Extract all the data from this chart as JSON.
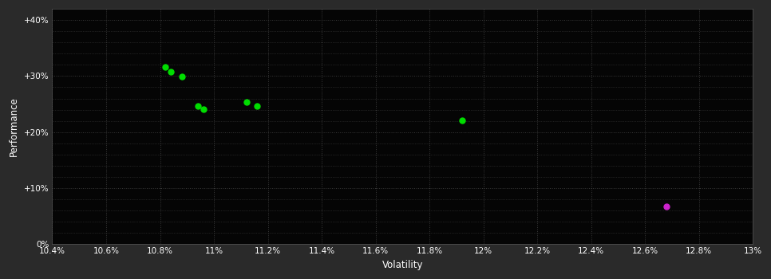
{
  "background_color": "#2a2a2a",
  "plot_bg_color": "#050505",
  "grid_color": "#3a3a3a",
  "text_color": "#ffffff",
  "xlabel": "Volatility",
  "ylabel": "Performance",
  "xlim": [
    0.104,
    0.13
  ],
  "ylim": [
    0.0,
    0.42
  ],
  "xticks": [
    0.104,
    0.106,
    0.108,
    0.11,
    0.112,
    0.114,
    0.116,
    0.118,
    0.12,
    0.122,
    0.124,
    0.126,
    0.128,
    0.13
  ],
  "yticks": [
    0.0,
    0.1,
    0.2,
    0.3,
    0.4
  ],
  "ytick_labels": [
    "0%",
    "+10%",
    "+20%",
    "+30%",
    "+40%"
  ],
  "xtick_labels": [
    "10.4%",
    "10.6%",
    "10.8%",
    "11%",
    "11.2%",
    "11.4%",
    "11.6%",
    "11.8%",
    "12%",
    "12.2%",
    "12.4%",
    "12.6%",
    "12.8%",
    "13%"
  ],
  "green_points": [
    [
      0.1082,
      0.316
    ],
    [
      0.1084,
      0.307
    ],
    [
      0.1088,
      0.299
    ],
    [
      0.1094,
      0.247
    ],
    [
      0.1096,
      0.241
    ],
    [
      0.1112,
      0.253
    ],
    [
      0.1116,
      0.247
    ],
    [
      0.1192,
      0.221
    ]
  ],
  "magenta_points": [
    [
      0.1268,
      0.067
    ]
  ],
  "green_color": "#00dd00",
  "magenta_color": "#cc22cc",
  "marker_size": 5,
  "minor_yticks": [
    0.02,
    0.04,
    0.06,
    0.08,
    0.12,
    0.14,
    0.16,
    0.18,
    0.22,
    0.24,
    0.26,
    0.28,
    0.32,
    0.34,
    0.36,
    0.38
  ]
}
